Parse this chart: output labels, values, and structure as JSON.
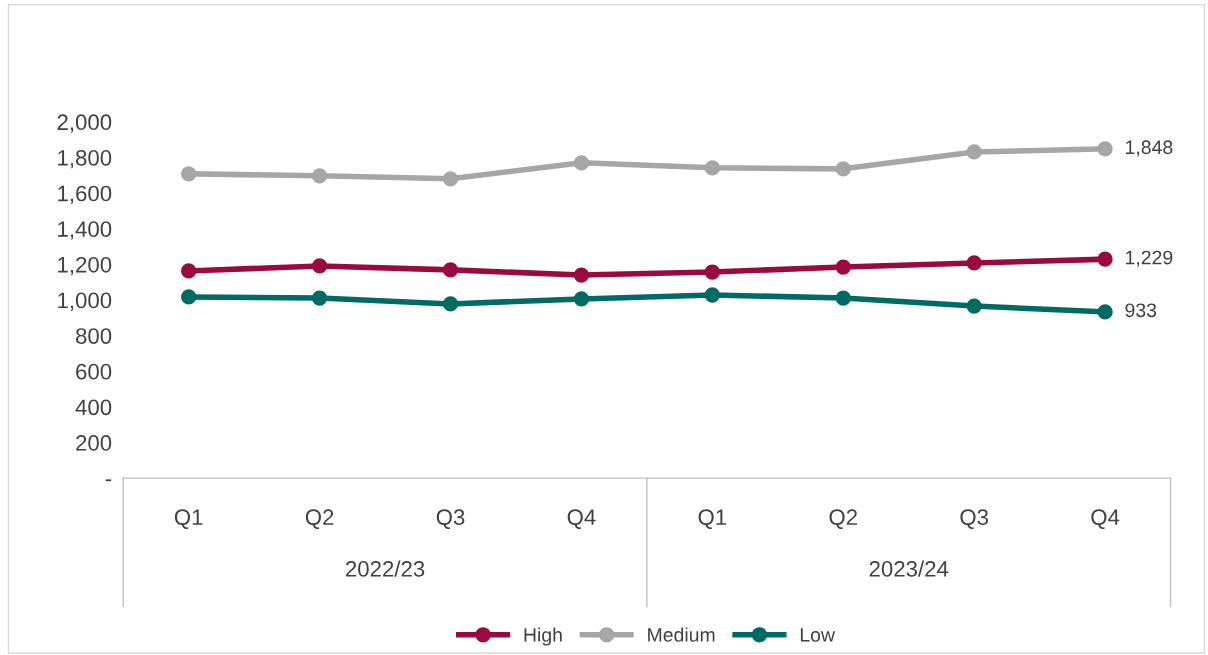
{
  "chart_data": {
    "type": "line",
    "categories": [
      "Q1",
      "Q2",
      "Q3",
      "Q4",
      "Q1",
      "Q2",
      "Q3",
      "Q4"
    ],
    "annotations": [
      "2022/23",
      "2023/24"
    ],
    "series": [
      {
        "name": "High",
        "color": "#9b0a3e",
        "values": [
          1163,
          1191,
          1169,
          1140,
          1157,
          1185,
          1208,
          1229
        ],
        "value_labels": [
          null,
          null,
          null,
          null,
          null,
          null,
          null,
          "1,229"
        ]
      },
      {
        "name": "Medium",
        "color": "#a6a6a6",
        "values": [
          1708,
          1697,
          1680,
          1770,
          1742,
          1736,
          1831,
          1848
        ],
        "value_labels": [
          null,
          null,
          null,
          null,
          null,
          null,
          null,
          "1,848"
        ]
      },
      {
        "name": "Low",
        "color": "#006a64",
        "values": [
          1017,
          1011,
          978,
          1006,
          1028,
          1011,
          966,
          933
        ],
        "value_labels": [
          null,
          null,
          null,
          null,
          null,
          null,
          null,
          "933"
        ]
      }
    ],
    "ylim": [
      0,
      2000
    ],
    "yticks": [
      {
        "value": 0,
        "label": "-"
      },
      {
        "value": 200,
        "label": "200"
      },
      {
        "value": 400,
        "label": "400"
      },
      {
        "value": 600,
        "label": "600"
      },
      {
        "value": 800,
        "label": "800"
      },
      {
        "value": 1000,
        "label": "1,000"
      },
      {
        "value": 1200,
        "label": "1,200"
      },
      {
        "value": 1400,
        "label": "1,400"
      },
      {
        "value": 1600,
        "label": "1,600"
      },
      {
        "value": 1800,
        "label": "1,800"
      },
      {
        "value": 2000,
        "label": "2,000"
      }
    ],
    "grid": false,
    "legend": "bottom",
    "marker": "circle",
    "line_style": "solid"
  }
}
